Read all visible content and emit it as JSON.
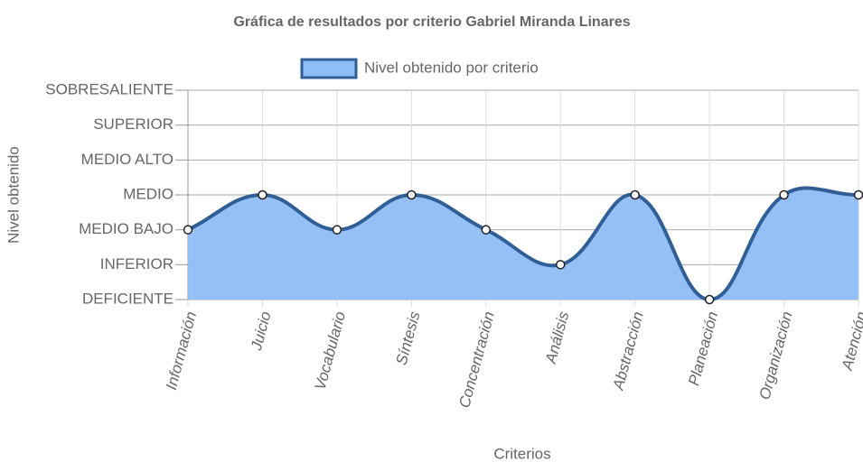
{
  "chart_data": {
    "type": "line",
    "title": "Gráfica de resultados por criterio Gabriel Miranda Linares",
    "x_label": "Criterios",
    "y_label": "Nivel obtenido",
    "categories": [
      "Información",
      "Juicio",
      "Vocabulario",
      "Síntesis",
      "Concentración",
      "Análisis",
      "Abstracción",
      "Planeación",
      "Organización",
      "Atención"
    ],
    "series": [
      {
        "name": "Nivel obtenido por criterio",
        "color": "#2f5f96",
        "fill": "#8fbdf7",
        "values": [
          2,
          3,
          2,
          3,
          2,
          1,
          3,
          0,
          3,
          3
        ]
      }
    ],
    "ylim": [
      0,
      6
    ],
    "yticks": [
      {
        "value": 0,
        "label": "DEFICIENTE"
      },
      {
        "value": 1,
        "label": "INFERIOR"
      },
      {
        "value": 2,
        "label": "MEDIO BAJO"
      },
      {
        "value": 3,
        "label": "MEDIO"
      },
      {
        "value": 4,
        "label": "MEDIO ALTO"
      },
      {
        "value": 5,
        "label": "SUPERIOR"
      },
      {
        "value": 6,
        "label": "SOBRESALIENTE"
      }
    ],
    "grid": true,
    "legend": "top"
  }
}
